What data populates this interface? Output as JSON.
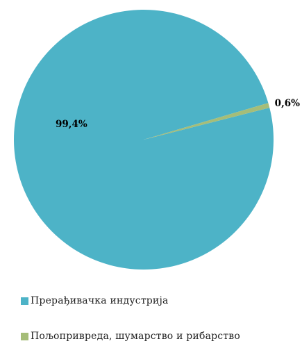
{
  "chart_data": {
    "type": "pie",
    "categories": [
      "Прерађивачка индустрија",
      "Пољопривреда, шумарство и рибарство"
    ],
    "values": [
      99.4,
      0.6
    ],
    "data_labels": [
      "99,4%",
      "0,6%"
    ],
    "colors": [
      "#4db3c7",
      "#a5bd78"
    ],
    "title": "",
    "legend_position": "bottom",
    "grid": false
  }
}
